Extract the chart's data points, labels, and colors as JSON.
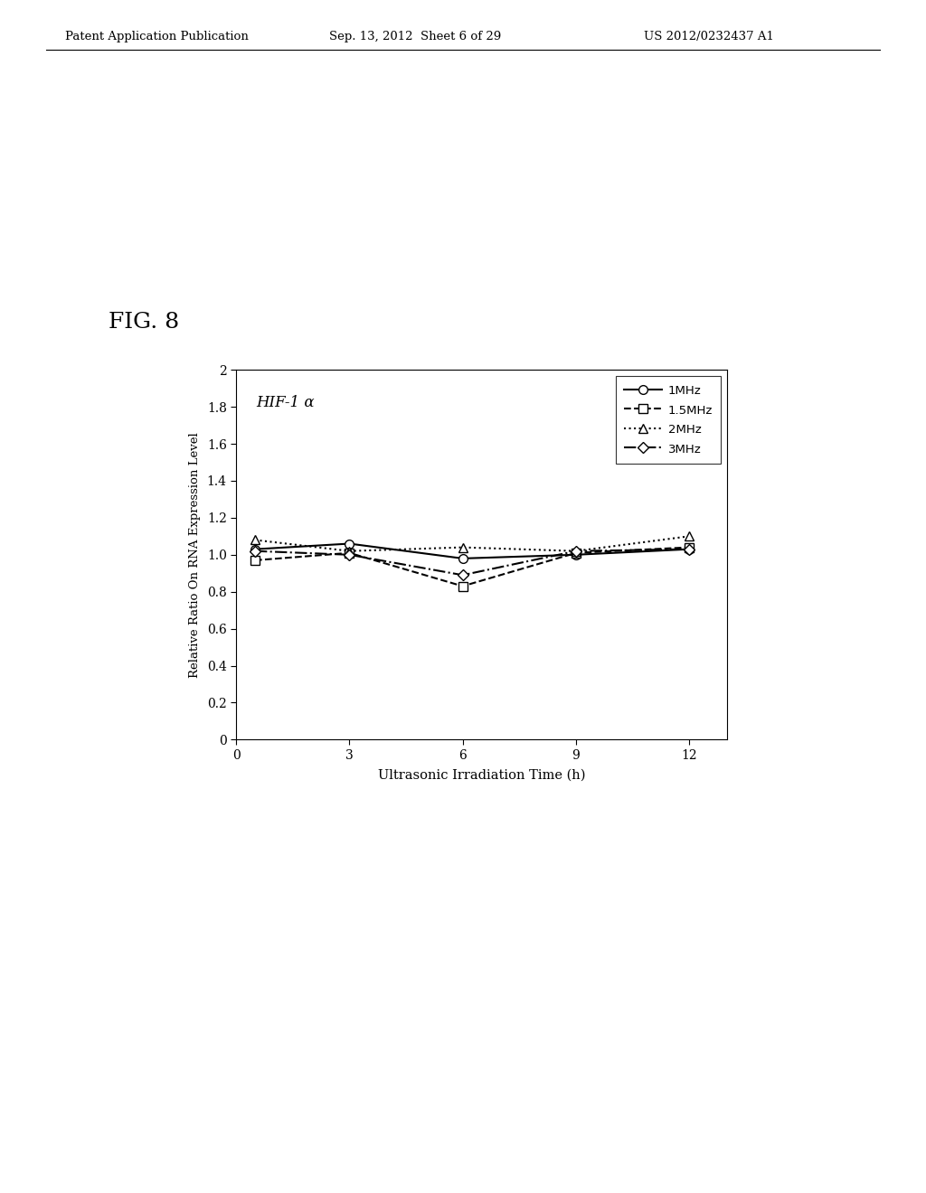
{
  "title_fig": "FIG. 8",
  "annotation": "HIF-1 α",
  "xlabel": "Ultrasonic Irradiation Time (h)",
  "ylabel": "Relative Ratio On RNA Expression Level",
  "xlim": [
    0,
    13
  ],
  "ylim": [
    0,
    2
  ],
  "xticks": [
    0,
    3,
    6,
    9,
    12
  ],
  "yticks": [
    0,
    0.2,
    0.4,
    0.6,
    0.8,
    1.0,
    1.2,
    1.4,
    1.6,
    1.8,
    2.0
  ],
  "x_values": [
    0.5,
    3,
    6,
    9,
    12
  ],
  "series_order": [
    "1MHz",
    "1.5MHz",
    "2MHz",
    "3MHz"
  ],
  "series": {
    "1MHz": {
      "y": [
        1.03,
        1.06,
        0.98,
        1.0,
        1.03
      ],
      "linestyle": "-",
      "marker": "o",
      "color": "#000000",
      "linewidth": 1.5
    },
    "1.5MHz": {
      "y": [
        0.97,
        1.01,
        0.83,
        1.01,
        1.04
      ],
      "linestyle": "--",
      "marker": "s",
      "color": "#000000",
      "linewidth": 1.5
    },
    "2MHz": {
      "y": [
        1.08,
        1.02,
        1.04,
        1.02,
        1.1
      ],
      "linestyle": ":",
      "marker": "^",
      "color": "#000000",
      "linewidth": 1.5
    },
    "3MHz": {
      "y": [
        1.02,
        1.0,
        0.89,
        1.02,
        1.03
      ],
      "linestyle": "-.",
      "marker": "D",
      "color": "#000000",
      "linewidth": 1.5
    }
  },
  "marker_styles": {
    "1MHz": {
      "marker": "o",
      "ms": 7
    },
    "1.5MHz": {
      "marker": "s",
      "ms": 7
    },
    "2MHz": {
      "marker": "^",
      "ms": 7
    },
    "3MHz": {
      "marker": "D",
      "ms": 6
    }
  },
  "header_left": "Patent Application Publication",
  "header_center": "Sep. 13, 2012  Sheet 6 of 29",
  "header_right": "US 2012/0232437 A1",
  "background_color": "#ffffff"
}
